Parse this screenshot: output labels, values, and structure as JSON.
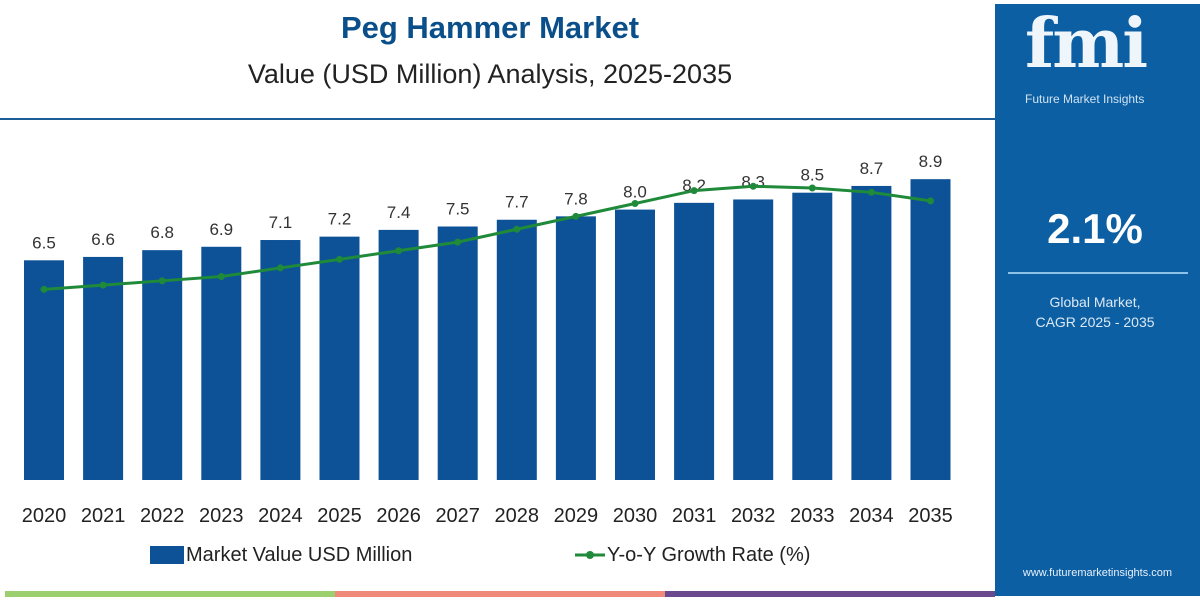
{
  "header": {
    "title": "Peg Hammer Market",
    "subtitle": "Value (USD Million) Analysis, 2025-2035"
  },
  "sidebar": {
    "logo_text": "fmi",
    "logo_subtitle": "Future Market Insights",
    "cagr_value": "2.1%",
    "cagr_label_line1": "Global Market,",
    "cagr_label_line2": "CAGR 2025 - 2035",
    "url": "www.futuremarketinsights.com"
  },
  "colors": {
    "bar": "#0d5197",
    "line": "#1f8a3a",
    "sidebar": "#0d5fa3",
    "strip": [
      "#9ccf6e",
      "#f08a7a",
      "#6a4a8e"
    ]
  },
  "chart_data": {
    "type": "bar",
    "title": "Peg Hammer Market",
    "subtitle": "Value (USD Million) Analysis, 2025-2035",
    "categories": [
      "2020",
      "2021",
      "2022",
      "2023",
      "2024",
      "2025",
      "2026",
      "2027",
      "2028",
      "2029",
      "2030",
      "2031",
      "2032",
      "2033",
      "2034",
      "2035"
    ],
    "series": [
      {
        "name": "Market Value USD Million",
        "type": "bar",
        "values": [
          6.5,
          6.6,
          6.8,
          6.9,
          7.1,
          7.2,
          7.4,
          7.5,
          7.7,
          7.8,
          8.0,
          8.2,
          8.3,
          8.5,
          8.7,
          8.9
        ]
      },
      {
        "name": "Y-o-Y Growth Rate (%)",
        "type": "line",
        "values": [
          1.6,
          1.65,
          1.7,
          1.75,
          1.85,
          1.95,
          2.05,
          2.15,
          2.3,
          2.45,
          2.6,
          2.75,
          2.8,
          2.78,
          2.73,
          2.63
        ]
      }
    ],
    "ylim": [
      0,
      10
    ],
    "grid": false,
    "legend": "bottom"
  }
}
